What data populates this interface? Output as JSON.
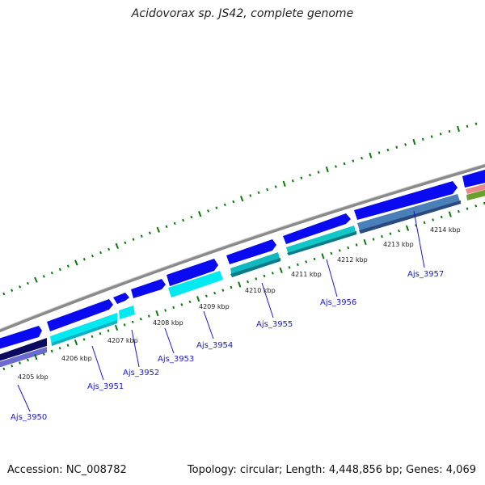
{
  "title": "Acidovorax sp. JS42, complete genome",
  "accession": "Accession: NC_008782",
  "topology": "Topology: circular; Length: 4,448,856 bp; Genes: 4,069",
  "ticks": [
    {
      "label": "4205 kbp"
    },
    {
      "label": "4206 kbp"
    },
    {
      "label": "4207 kbp"
    },
    {
      "label": "4208 kbp"
    },
    {
      "label": "4209 kbp"
    },
    {
      "label": "4210 kbp"
    },
    {
      "label": "4211 kbp"
    },
    {
      "label": "4212 kbp"
    },
    {
      "label": "4213 kbp"
    },
    {
      "label": "4214 kbp"
    }
  ],
  "genes": [
    {
      "name": "Ajs_3950"
    },
    {
      "name": "Ajs_3951"
    },
    {
      "name": "Ajs_3952"
    },
    {
      "name": "Ajs_3953"
    },
    {
      "name": "Ajs_3954"
    },
    {
      "name": "Ajs_3955"
    },
    {
      "name": "Ajs_3956"
    },
    {
      "name": "Ajs_3957"
    }
  ],
  "colors": {
    "backbone": "#8a8a8a",
    "cds_forward": "#0a0af0",
    "cds_light": "#00e8f0",
    "cds_teal": "#10b8c0",
    "cds_steel": "#4a80b8",
    "cds_navy": "#0a0a60",
    "cds_purple": "#6a6ad0",
    "tick_green": "#0a7a0a",
    "label_blue": "#1a1ad0"
  }
}
